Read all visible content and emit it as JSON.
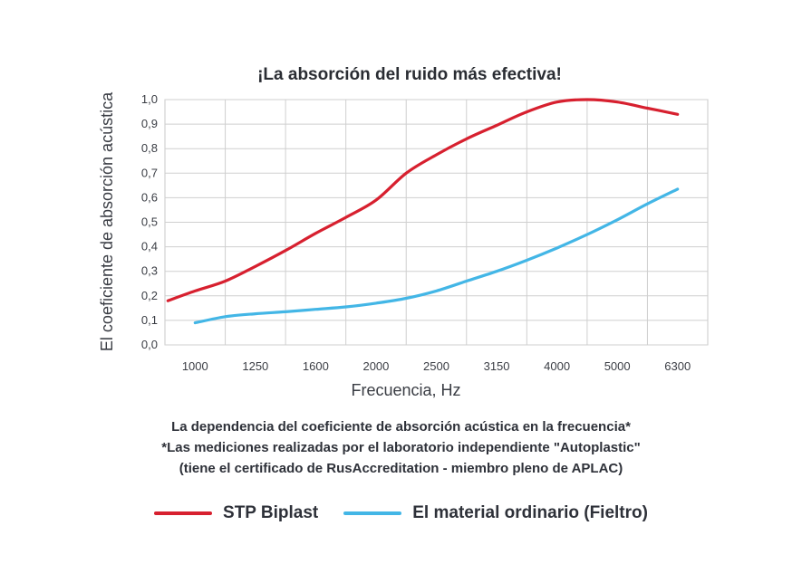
{
  "chart_data": {
    "type": "line",
    "title": "¡La absorción del ruido más efectiva!",
    "xlabel": "Frecuencia, Hz",
    "ylabel": "El coeficiente de absorción acústica",
    "categories": [
      "1000",
      "1250",
      "1600",
      "2000",
      "2500",
      "3150",
      "4000",
      "5000",
      "6300"
    ],
    "x_ticks": [
      1,
      2,
      3,
      4,
      5,
      6,
      7,
      8,
      9
    ],
    "xlim": [
      0.5,
      9.5
    ],
    "ylim": [
      0,
      1.0
    ],
    "y_ticks": [
      "0,0",
      "0,1",
      "0,2",
      "0,3",
      "0,4",
      "0,5",
      "0,6",
      "0,7",
      "0,8",
      "0,9",
      "1,0"
    ],
    "grid": true,
    "series": [
      {
        "name": "STP Biplast",
        "color": "#d7202f",
        "x": [
          0.55,
          1.0,
          1.5,
          2.0,
          2.5,
          3.0,
          3.5,
          4.0,
          4.5,
          5.0,
          5.5,
          6.0,
          6.5,
          7.0,
          7.5,
          8.0,
          8.5,
          9.0
        ],
        "values": [
          0.18,
          0.22,
          0.26,
          0.32,
          0.385,
          0.455,
          0.52,
          0.59,
          0.7,
          0.775,
          0.84,
          0.895,
          0.95,
          0.99,
          1.0,
          0.99,
          0.965,
          0.94
        ]
      },
      {
        "name": "El material ordinario (Fieltro)",
        "color": "#43b6e6",
        "x": [
          1.0,
          1.5,
          2.0,
          2.5,
          3.0,
          3.5,
          4.0,
          4.5,
          5.0,
          5.5,
          6.0,
          6.5,
          7.0,
          7.5,
          8.0,
          8.5,
          9.0
        ],
        "values": [
          0.09,
          0.115,
          0.127,
          0.135,
          0.145,
          0.155,
          0.17,
          0.19,
          0.22,
          0.26,
          0.3,
          0.345,
          0.395,
          0.45,
          0.51,
          0.575,
          0.635
        ]
      }
    ]
  },
  "notes": [
    "La dependencia del coeficiente de absorción acústica en la frecuencia*",
    "*Las mediciones realizadas por el laboratorio independiente \"Autoplastic\"",
    "(tiene el certificado de RusAccreditation - miembro pleno de APLAC)"
  ]
}
